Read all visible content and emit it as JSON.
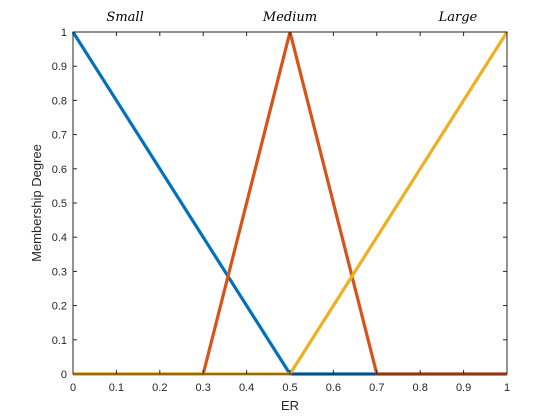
{
  "chart_data": {
    "type": "line",
    "title": "",
    "xlabel": "ER",
    "ylabel": "Membership Degree",
    "xlim": [
      0,
      1
    ],
    "ylim": [
      0,
      1
    ],
    "grid": false,
    "x_ticks": [
      "0",
      "0.1",
      "0.2",
      "0.3",
      "0.4",
      "0.5",
      "0.6",
      "0.7",
      "0.8",
      "0.9",
      "1"
    ],
    "y_ticks": [
      "0",
      "0.1",
      "0.2",
      "0.3",
      "0.4",
      "0.5",
      "0.6",
      "0.7",
      "0.8",
      "0.9",
      "1"
    ],
    "series": [
      {
        "name": "Small",
        "color": "#0072BD",
        "x": [
          0,
          0.5,
          1
        ],
        "y": [
          1,
          0,
          0
        ]
      },
      {
        "name": "Medium",
        "color": "#D95319",
        "x": [
          0,
          0.3,
          0.5,
          0.7,
          1
        ],
        "y": [
          0,
          0,
          1,
          0,
          0
        ]
      },
      {
        "name": "Large",
        "color": "#EDB120",
        "x": [
          0,
          0.5,
          1
        ],
        "y": [
          0,
          0,
          1
        ]
      }
    ],
    "annotations": [
      {
        "text": "Small",
        "x": 0.12
      },
      {
        "text": "Medium",
        "x": 0.5
      },
      {
        "text": "Large",
        "x": 0.887
      }
    ]
  }
}
